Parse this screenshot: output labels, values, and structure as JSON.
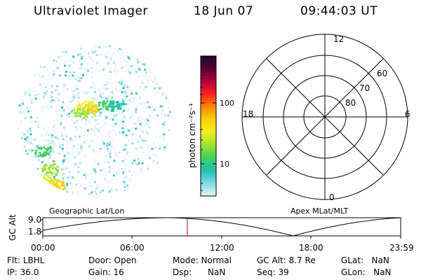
{
  "header": {
    "title": "Ultraviolet Imager",
    "date": "18 Jun 07",
    "time": "09:44:03 UT"
  },
  "colorbar": {
    "unit_label": "photon cm⁻²s⁻¹",
    "ticks": [
      "100",
      "10"
    ],
    "colors": [
      "#1a0a2e",
      "#5a0030",
      "#b0003a",
      "#ff2020",
      "#ff8a00",
      "#ffd000",
      "#f0f020",
      "#a0e030",
      "#40d060",
      "#20c0b0",
      "#80d8e8",
      "#e8f4f8"
    ]
  },
  "polar_plot": {
    "mlt_labels": {
      "top": "12",
      "left": "18",
      "right": "6",
      "bottom": "0"
    },
    "lat_labels": [
      "60",
      "70",
      "80"
    ]
  },
  "labels": {
    "geographic": "Geographic Lat/Lon",
    "apex": "Apex MLat/MLT"
  },
  "altitude_strip": {
    "axis_label": "GC Alt",
    "y_ticks": [
      "9.0",
      "1.8"
    ],
    "x_ticks": [
      "00:00",
      "06:00",
      "12:00",
      "18:00",
      "23:59"
    ],
    "current_marker_color": "#c00030"
  },
  "info": {
    "row1": [
      {
        "key": "Flt:",
        "val": "LBHL"
      },
      {
        "key": "Door:",
        "val": "Open"
      },
      {
        "key": "Mode:",
        "val": "Normal"
      },
      {
        "key": "GC Alt:",
        "val": "8.7 Re"
      },
      {
        "key": "GLat:",
        "val": "NaN"
      }
    ],
    "row2": [
      {
        "key": "IP:",
        "val": "36.0"
      },
      {
        "key": "Gain:",
        "val": "16"
      },
      {
        "key": "Dsp:",
        "val": "NaN"
      },
      {
        "key": "Seq:",
        "val": "39"
      },
      {
        "key": "GLon:",
        "val": "NaN"
      }
    ]
  }
}
